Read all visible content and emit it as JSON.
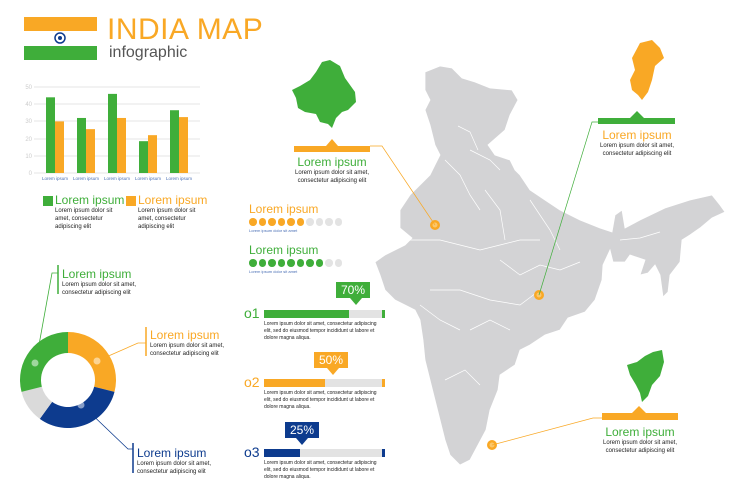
{
  "header": {
    "title": "INDIA MAP",
    "subtitle": "infographic"
  },
  "colors": {
    "saffron": "#F9A825",
    "green": "#3FAE3A",
    "blue": "#0D3B8E",
    "grey": "#DADADA",
    "map": "#D3D3D5"
  },
  "chart_data": [
    {
      "type": "bar",
      "title": "",
      "categories": [
        "Lorem ipsum",
        "Lorem ipsum",
        "Lorem ipsum",
        "Lorem ipsum",
        "Lorem ipsum"
      ],
      "series": [
        {
          "name": "Lorem ipsum (green)",
          "color": "#3FAE3A",
          "values": [
            44,
            32,
            46,
            18.5,
            36.5
          ]
        },
        {
          "name": "Lorem ipsum (orange)",
          "color": "#F9A825",
          "values": [
            30,
            25.5,
            32,
            22,
            32.5
          ]
        }
      ],
      "yticks": [
        0,
        10,
        20,
        30,
        40,
        50
      ],
      "ylim": [
        0,
        50
      ],
      "grid": true,
      "xlabel": "",
      "ylabel": "",
      "legend_position": "bottom"
    },
    {
      "type": "pie",
      "style": "donut",
      "segments": [
        {
          "name": "Lorem ipsum (orange)",
          "color": "#F9A825",
          "value": 29
        },
        {
          "name": "Lorem ipsum (blue)",
          "color": "#0D3B8E",
          "value": 31
        },
        {
          "name": "grey",
          "color": "#DADADA",
          "value": 11
        },
        {
          "name": "Lorem ipsum (green)",
          "color": "#3FAE3A",
          "value": 29
        }
      ]
    }
  ],
  "bar_legend": [
    {
      "title": "Lorem ipsum",
      "text1": "Lorem ipsum dolor sit",
      "text2": "amet, consectetur",
      "text3": "adipiscing elit"
    },
    {
      "title": "Lorem ipsum",
      "text1": "Lorem ipsum dolor sit",
      "text2": "amet, consectetur",
      "text3": "adipiscing elit"
    }
  ],
  "donut_callouts": [
    {
      "title": "Lorem ipsum",
      "text1": "Lorem ipsum dolor sit amet,",
      "text2": "consectetur adipiscing elit"
    },
    {
      "title": "Lorem ipsum",
      "text1": "Lorem ipsum dolor sit amet,",
      "text2": "consectetur adipiscing elit"
    },
    {
      "title": "Lorem ipsum",
      "text1": "Lorem ipsum dolor sit amet,",
      "text2": "consectetur adipiscing elit"
    }
  ],
  "dot_ratings": [
    {
      "title": "Lorem ipsum",
      "filled": 6,
      "total": 10,
      "caption": "Lorem ipsum dolor sit amet"
    },
    {
      "title": "Lorem ipsum",
      "filled": 8,
      "total": 10,
      "caption": "Lorem ipsum dolor sit amet"
    }
  ],
  "progress": [
    {
      "num": "o1",
      "pct": "70%",
      "value": 70,
      "text1": "Lorem ipsum dolor sit amet, consectetur adipiscing",
      "text2": "elit, sed do eiusmod tempor incididunt ut labore et",
      "text3": "dolore magna aliqua."
    },
    {
      "num": "o2",
      "pct": "50%",
      "value": 50,
      "text1": "Lorem ipsum dolor sit amet, consectetur adipiscing",
      "text2": "elit, sed do eiusmod tempor incididunt ut labore et",
      "text3": "dolore magna aliqua."
    },
    {
      "num": "o3",
      "pct": "25%",
      "value": 25,
      "text1": "Lorem ipsum dolor sit amet, consectetur adipiscing",
      "text2": "elit, sed do eiusmod tempor incididunt ut labore et",
      "text3": "dolore magna aliqua."
    }
  ],
  "map_callouts": [
    {
      "title": "Lorem ipsum",
      "text1": "Lorem ipsum dolor sit amet,",
      "text2": "consectetur adipiscing elit"
    },
    {
      "title": "Lorem ipsum",
      "text1": "Lorem ipsum dolor sit amet,",
      "text2": "consectetur adipiscing elit"
    },
    {
      "title": "Lorem ipsum",
      "text1": "Lorem ipsum dolor sit amet,",
      "text2": "consectetur adipiscing elit"
    }
  ]
}
